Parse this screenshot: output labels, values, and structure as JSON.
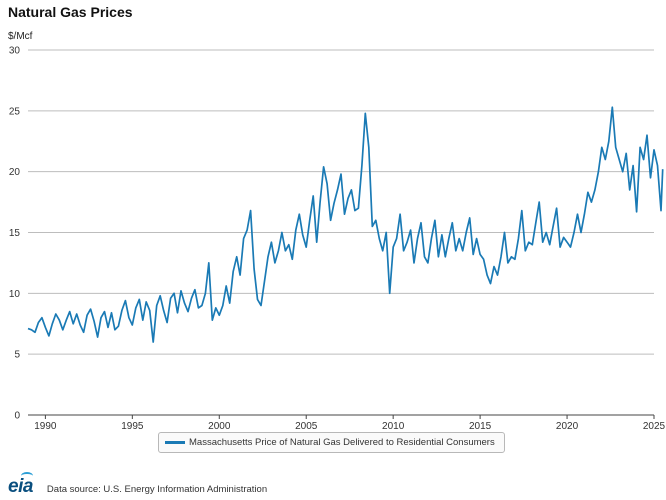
{
  "chart_data": {
    "type": "line",
    "title": "Natural Gas Prices",
    "units_label": "$/Mcf",
    "ylim": [
      0,
      30
    ],
    "yticks": [
      0,
      5,
      10,
      15,
      20,
      25,
      30
    ],
    "xlim": [
      1989,
      2025
    ],
    "xticks": [
      "1990",
      "1995",
      "2000",
      "2005",
      "2010",
      "2015",
      "2020",
      "2025"
    ],
    "grid": true,
    "legend_position": "bottom",
    "series": [
      {
        "name": "Massachusetts Price of Natural Gas Delivered to Residential Consumers",
        "color": "#1a7ab5",
        "points": [
          [
            1989.0,
            7.1
          ],
          [
            1989.2,
            7.0
          ],
          [
            1989.4,
            6.8
          ],
          [
            1989.6,
            7.6
          ],
          [
            1989.8,
            8.0
          ],
          [
            1990.0,
            7.2
          ],
          [
            1990.2,
            6.5
          ],
          [
            1990.4,
            7.5
          ],
          [
            1990.6,
            8.3
          ],
          [
            1990.8,
            7.8
          ],
          [
            1991.0,
            7.0
          ],
          [
            1991.2,
            7.8
          ],
          [
            1991.4,
            8.5
          ],
          [
            1991.6,
            7.5
          ],
          [
            1991.8,
            8.3
          ],
          [
            1992.0,
            7.4
          ],
          [
            1992.2,
            6.8
          ],
          [
            1992.4,
            8.2
          ],
          [
            1992.6,
            8.7
          ],
          [
            1992.8,
            7.7
          ],
          [
            1993.0,
            6.4
          ],
          [
            1993.2,
            8.0
          ],
          [
            1993.4,
            8.5
          ],
          [
            1993.6,
            7.2
          ],
          [
            1993.8,
            8.4
          ],
          [
            1994.0,
            7.0
          ],
          [
            1994.2,
            7.3
          ],
          [
            1994.4,
            8.6
          ],
          [
            1994.6,
            9.4
          ],
          [
            1994.8,
            8.0
          ],
          [
            1995.0,
            7.4
          ],
          [
            1995.2,
            8.8
          ],
          [
            1995.4,
            9.5
          ],
          [
            1995.6,
            7.8
          ],
          [
            1995.8,
            9.3
          ],
          [
            1996.0,
            8.6
          ],
          [
            1996.2,
            6.0
          ],
          [
            1996.4,
            9.0
          ],
          [
            1996.6,
            9.8
          ],
          [
            1996.8,
            8.6
          ],
          [
            1997.0,
            7.6
          ],
          [
            1997.2,
            9.6
          ],
          [
            1997.4,
            10.0
          ],
          [
            1997.6,
            8.4
          ],
          [
            1997.8,
            10.2
          ],
          [
            1998.0,
            9.2
          ],
          [
            1998.2,
            8.5
          ],
          [
            1998.4,
            9.6
          ],
          [
            1998.6,
            10.3
          ],
          [
            1998.8,
            8.8
          ],
          [
            1999.0,
            9.0
          ],
          [
            1999.2,
            10.0
          ],
          [
            1999.4,
            12.5
          ],
          [
            1999.6,
            7.8
          ],
          [
            1999.8,
            8.8
          ],
          [
            2000.0,
            8.2
          ],
          [
            2000.2,
            9.0
          ],
          [
            2000.4,
            10.6
          ],
          [
            2000.6,
            9.2
          ],
          [
            2000.8,
            11.8
          ],
          [
            2001.0,
            13.0
          ],
          [
            2001.2,
            11.5
          ],
          [
            2001.4,
            14.5
          ],
          [
            2001.6,
            15.2
          ],
          [
            2001.8,
            16.8
          ],
          [
            2002.0,
            12.0
          ],
          [
            2002.2,
            9.5
          ],
          [
            2002.4,
            9.0
          ],
          [
            2002.6,
            11.0
          ],
          [
            2002.8,
            13.0
          ],
          [
            2003.0,
            14.2
          ],
          [
            2003.2,
            12.5
          ],
          [
            2003.4,
            13.5
          ],
          [
            2003.6,
            15.0
          ],
          [
            2003.8,
            13.5
          ],
          [
            2004.0,
            14.0
          ],
          [
            2004.2,
            12.8
          ],
          [
            2004.4,
            15.2
          ],
          [
            2004.6,
            16.5
          ],
          [
            2004.8,
            14.8
          ],
          [
            2005.0,
            13.8
          ],
          [
            2005.2,
            16.0
          ],
          [
            2005.4,
            18.0
          ],
          [
            2005.6,
            14.2
          ],
          [
            2005.8,
            17.5
          ],
          [
            2006.0,
            20.4
          ],
          [
            2006.2,
            19.0
          ],
          [
            2006.4,
            16.0
          ],
          [
            2006.6,
            17.4
          ],
          [
            2006.8,
            18.5
          ],
          [
            2007.0,
            19.8
          ],
          [
            2007.2,
            16.5
          ],
          [
            2007.4,
            17.8
          ],
          [
            2007.6,
            18.5
          ],
          [
            2007.8,
            16.8
          ],
          [
            2008.0,
            17.0
          ],
          [
            2008.2,
            20.5
          ],
          [
            2008.4,
            24.8
          ],
          [
            2008.6,
            22.0
          ],
          [
            2008.8,
            15.5
          ],
          [
            2009.0,
            16.0
          ],
          [
            2009.2,
            14.5
          ],
          [
            2009.4,
            13.5
          ],
          [
            2009.6,
            15.0
          ],
          [
            2009.8,
            10.0
          ],
          [
            2010.0,
            13.8
          ],
          [
            2010.2,
            14.5
          ],
          [
            2010.4,
            16.5
          ],
          [
            2010.6,
            13.5
          ],
          [
            2010.8,
            14.2
          ],
          [
            2011.0,
            15.2
          ],
          [
            2011.2,
            12.5
          ],
          [
            2011.4,
            14.5
          ],
          [
            2011.6,
            15.8
          ],
          [
            2011.8,
            13.0
          ],
          [
            2012.0,
            12.5
          ],
          [
            2012.2,
            14.5
          ],
          [
            2012.4,
            16.0
          ],
          [
            2012.6,
            13.0
          ],
          [
            2012.8,
            14.8
          ],
          [
            2013.0,
            13.0
          ],
          [
            2013.2,
            14.5
          ],
          [
            2013.4,
            15.8
          ],
          [
            2013.6,
            13.5
          ],
          [
            2013.8,
            14.5
          ],
          [
            2014.0,
            13.5
          ],
          [
            2014.2,
            15.0
          ],
          [
            2014.4,
            16.2
          ],
          [
            2014.6,
            13.2
          ],
          [
            2014.8,
            14.5
          ],
          [
            2015.0,
            13.2
          ],
          [
            2015.2,
            12.8
          ],
          [
            2015.4,
            11.5
          ],
          [
            2015.6,
            10.8
          ],
          [
            2015.8,
            12.2
          ],
          [
            2016.0,
            11.5
          ],
          [
            2016.2,
            13.0
          ],
          [
            2016.4,
            15.0
          ],
          [
            2016.6,
            12.5
          ],
          [
            2016.8,
            13.0
          ],
          [
            2017.0,
            12.8
          ],
          [
            2017.2,
            14.5
          ],
          [
            2017.4,
            16.8
          ],
          [
            2017.6,
            13.5
          ],
          [
            2017.8,
            14.2
          ],
          [
            2018.0,
            14.0
          ],
          [
            2018.2,
            15.8
          ],
          [
            2018.4,
            17.5
          ],
          [
            2018.6,
            14.2
          ],
          [
            2018.8,
            15.0
          ],
          [
            2019.0,
            14.0
          ],
          [
            2019.2,
            15.5
          ],
          [
            2019.4,
            17.0
          ],
          [
            2019.6,
            13.8
          ],
          [
            2019.8,
            14.6
          ],
          [
            2020.0,
            14.2
          ],
          [
            2020.2,
            13.8
          ],
          [
            2020.4,
            15.0
          ],
          [
            2020.6,
            16.5
          ],
          [
            2020.8,
            15.0
          ],
          [
            2021.0,
            16.5
          ],
          [
            2021.2,
            18.3
          ],
          [
            2021.4,
            17.5
          ],
          [
            2021.6,
            18.5
          ],
          [
            2021.8,
            20.0
          ],
          [
            2022.0,
            22.0
          ],
          [
            2022.2,
            21.0
          ],
          [
            2022.4,
            22.5
          ],
          [
            2022.6,
            25.3
          ],
          [
            2022.8,
            22.0
          ],
          [
            2023.0,
            21.0
          ],
          [
            2023.2,
            20.0
          ],
          [
            2023.4,
            21.5
          ],
          [
            2023.6,
            18.5
          ],
          [
            2023.8,
            20.5
          ],
          [
            2024.0,
            16.7
          ],
          [
            2024.2,
            22.0
          ],
          [
            2024.4,
            21.0
          ],
          [
            2024.6,
            23.0
          ],
          [
            2024.8,
            19.5
          ],
          [
            2025.0,
            21.8
          ],
          [
            2025.2,
            20.5
          ],
          [
            2025.4,
            16.8
          ],
          [
            2025.5,
            20.2
          ]
        ]
      }
    ]
  },
  "footer": {
    "logo_text": "eia",
    "source_text": "Data source: U.S. Energy Information Administration"
  }
}
